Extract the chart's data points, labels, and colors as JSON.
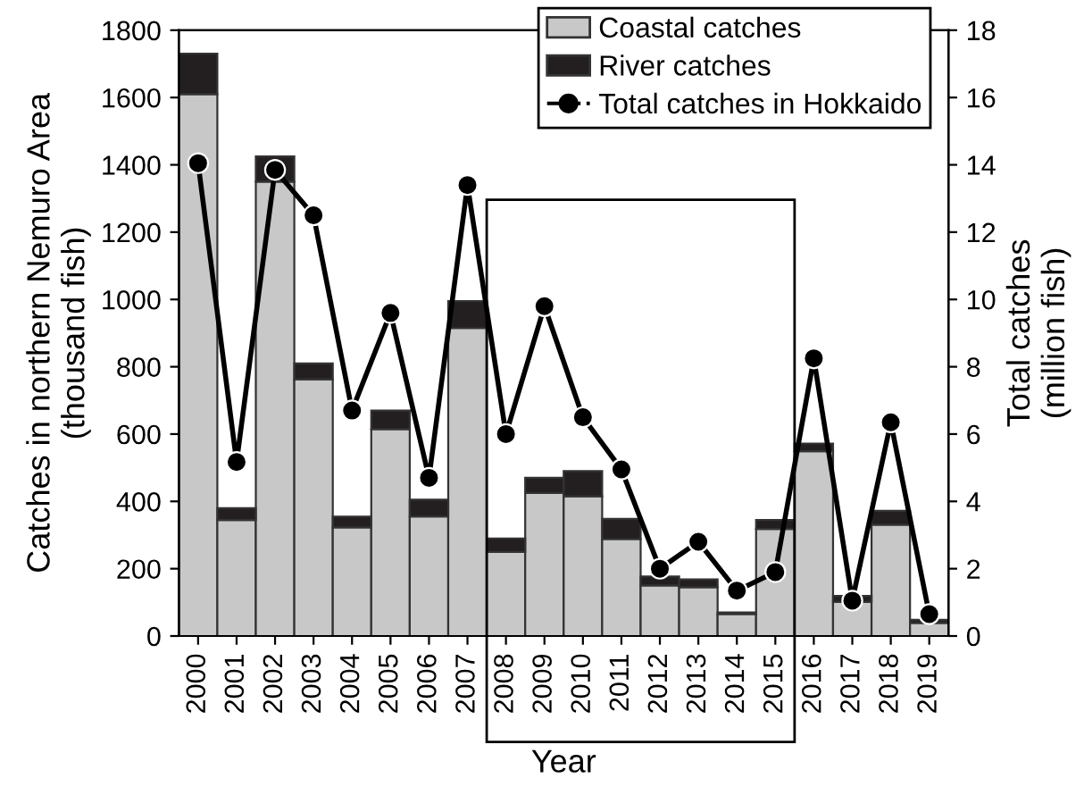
{
  "chart_data": {
    "type": "bar",
    "stacked": true,
    "xlabel": "Year",
    "ylabel": "Catches in northern Nemuro Area\n(thousand fish)",
    "y2label": "Total catches\n(million fish)",
    "categories": [
      "2000",
      "2001",
      "2002",
      "2003",
      "2004",
      "2005",
      "2006",
      "2007",
      "2008",
      "2009",
      "2010",
      "2011",
      "2012",
      "2013",
      "2014",
      "2015",
      "2016",
      "2017",
      "2018",
      "2019"
    ],
    "series": [
      {
        "name": "Coastal catches",
        "color": "#c8c8c8",
        "values": [
          1610,
          345,
          1350,
          763,
          323,
          615,
          355,
          915,
          250,
          425,
          415,
          288,
          150,
          145,
          65,
          318,
          549,
          101,
          331,
          39
        ]
      },
      {
        "name": "River catches",
        "color": "#231f20",
        "values": [
          120,
          35,
          75,
          47,
          32,
          55,
          50,
          80,
          40,
          45,
          75,
          60,
          27,
          23,
          5,
          27,
          23,
          18,
          41,
          9
        ]
      },
      {
        "name": "Total catches in Hokkaido",
        "type": "line",
        "axis": "y2",
        "color": "#000000",
        "marker": "circle",
        "values": [
          14.05,
          5.17,
          13.85,
          12.5,
          6.7,
          9.6,
          4.7,
          13.4,
          6.0,
          9.8,
          6.5,
          4.95,
          2.0,
          2.8,
          1.35,
          1.9,
          8.25,
          1.05,
          6.35,
          0.65
        ]
      }
    ],
    "ylim": [
      0,
      1800
    ],
    "yticks": [
      0,
      200,
      400,
      600,
      800,
      1000,
      1200,
      1400,
      1600,
      1800
    ],
    "y2lim": [
      0,
      18
    ],
    "y2ticks": [
      0,
      2,
      4,
      6,
      8,
      10,
      12,
      14,
      16,
      18
    ],
    "grid": false,
    "legend": "top right"
  }
}
